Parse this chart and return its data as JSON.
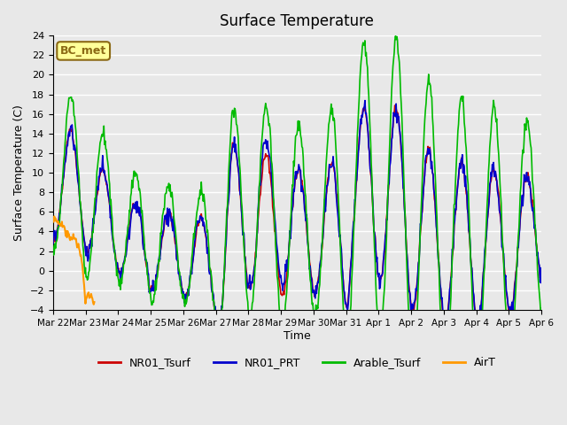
{
  "title": "Surface Temperature",
  "ylabel": "Surface Temperature (C)",
  "xlabel": "Time",
  "ylim": [
    -4,
    24
  ],
  "yticks": [
    -4,
    -2,
    0,
    2,
    4,
    6,
    8,
    10,
    12,
    14,
    16,
    18,
    20,
    22,
    24
  ],
  "xtick_labels": [
    "Mar 22",
    "Mar 23",
    "Mar 24",
    "Mar 25",
    "Mar 26",
    "Mar 27",
    "Mar 28",
    "Mar 29",
    "Mar 30",
    "Mar 31",
    "Apr 1",
    "Apr 2",
    "Apr 3",
    "Apr 4",
    "Apr 5",
    "Apr 6"
  ],
  "bg_color": "#e8e8e8",
  "plot_bg_color": "#e8e8e8",
  "grid_color": "#ffffff",
  "annotation_text": "BC_met",
  "annotation_bg": "#ffff99",
  "annotation_edge": "#8B6914",
  "lines": {
    "NR01_Tsurf": {
      "color": "#cc0000",
      "lw": 1.2
    },
    "NR01_PRT": {
      "color": "#0000cc",
      "lw": 1.2
    },
    "Arable_Tsurf": {
      "color": "#00bb00",
      "lw": 1.2
    },
    "AirT": {
      "color": "#ff9900",
      "lw": 1.5
    }
  },
  "legend_labels": [
    "NR01_Tsurf",
    "NR01_PRT",
    "Arable_Tsurf",
    "AirT"
  ],
  "legend_colors": [
    "#cc0000",
    "#0000cc",
    "#00bb00",
    "#ff9900"
  ]
}
